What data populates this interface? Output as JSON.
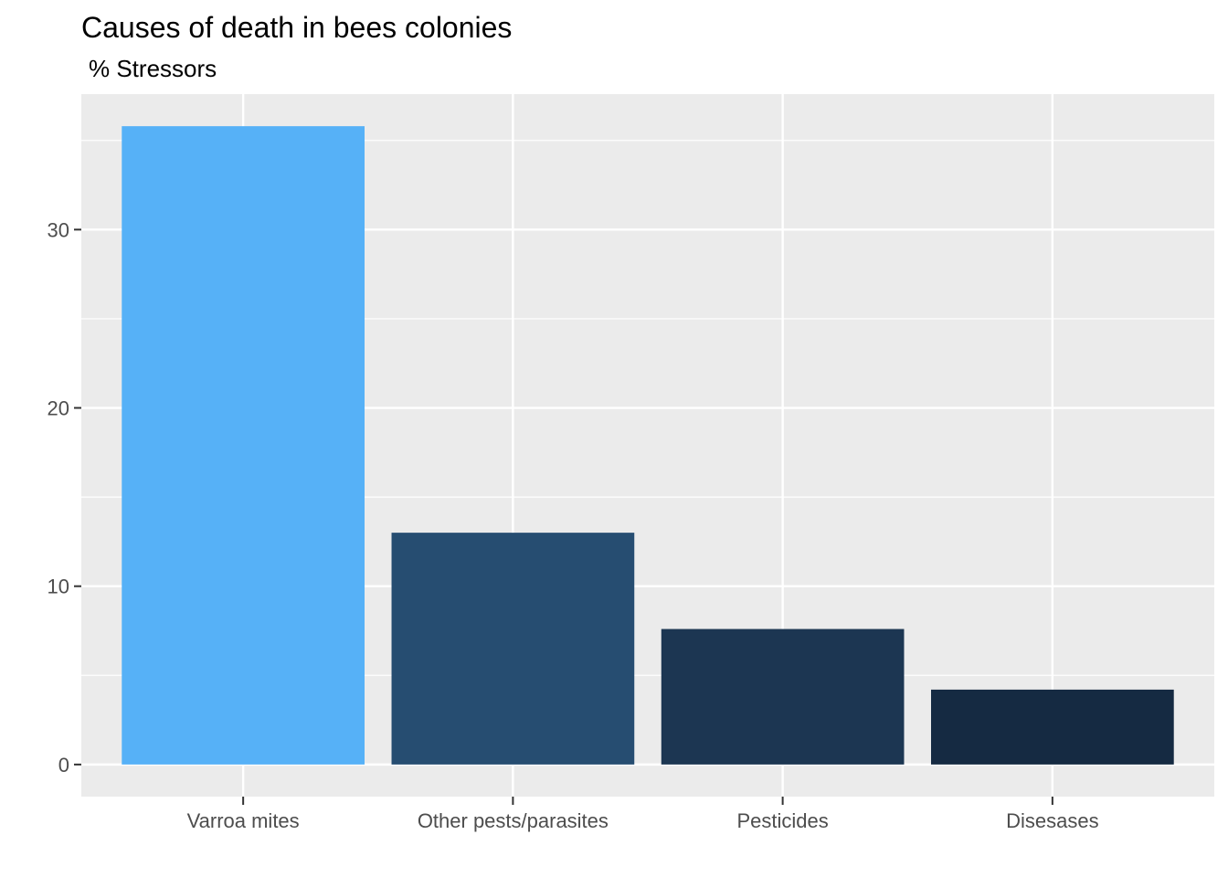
{
  "chart_data": {
    "type": "bar",
    "title": "Causes of death in bees colonies",
    "subtitle": "% Stressors",
    "categories": [
      "Varroa mites",
      "Other pests/parasites",
      "Pesticides",
      "Disesases"
    ],
    "values": [
      35.8,
      13.0,
      7.6,
      4.2
    ],
    "bar_colors": [
      "#56B1F7",
      "#264D71",
      "#1C3652",
      "#152A42"
    ],
    "xlabel": "",
    "ylabel": "",
    "ylim": [
      -1.8,
      37.6
    ],
    "yticks": [
      0,
      10,
      20,
      30
    ],
    "ytick_labels": [
      "0",
      "10",
      "20",
      "30"
    ],
    "grid": true,
    "panel_background": "#EBEBEB",
    "gridline_color": "#FFFFFF",
    "legend": "none"
  }
}
